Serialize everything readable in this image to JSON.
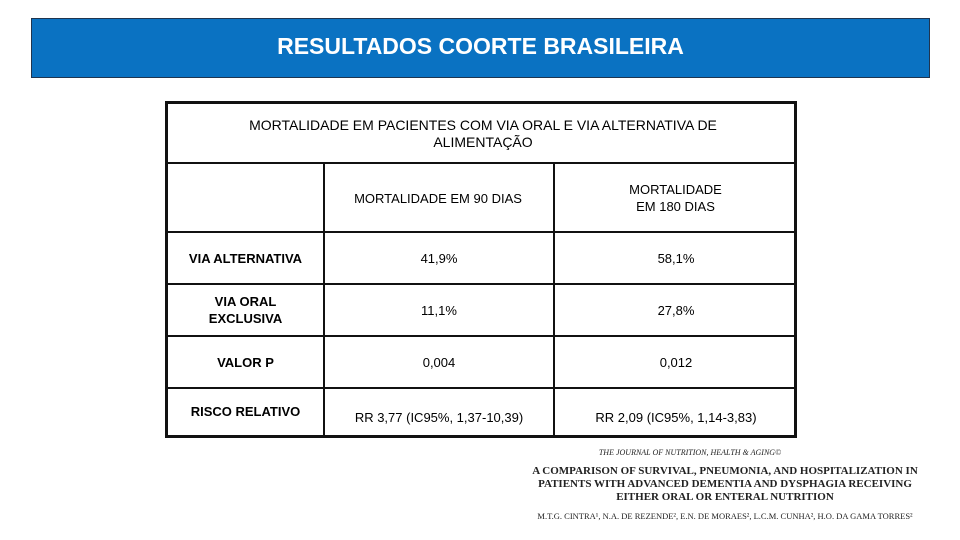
{
  "header": {
    "title": "RESULTADOS COORTE BRASILEIRA"
  },
  "table": {
    "caption": "MORTALIDADE EM PACIENTES COM VIA ORAL E VIA ALTERNATIVA DE ALIMENTAÇÃO",
    "columns": [
      "",
      "MORTALIDADE EM 90 DIAS",
      "MORTALIDADE EM 180 DIAS"
    ],
    "rows": [
      {
        "label": "VIA ALTERNATIVA",
        "d90": "41,9%",
        "d180": "58,1%"
      },
      {
        "label": "VIA ORAL EXCLUSIVA",
        "d90": "11,1%",
        "d180": "27,8%"
      },
      {
        "label": "VALOR P",
        "d90": "0,004",
        "d180": "0,012"
      },
      {
        "label": "RISCO RELATIVO",
        "d90": "RR 3,77 (IC95%, 1,37-10,39)",
        "d180": "RR 2,09 (IC95%, 1,14-3,83)"
      }
    ]
  },
  "reference": {
    "journal": "THE JOURNAL OF NUTRITION, HEALTH & AGING©",
    "title": "A COMPARISON OF SURVIVAL, PNEUMONIA, AND HOSPITALIZATION IN PATIENTS WITH ADVANCED DEMENTIA AND DYSPHAGIA RECEIVING EITHER ORAL OR ENTERAL NUTRITION",
    "authors": "M.T.G. CINTRA¹, N.A. DE REZENDE², E.N. DE MORAES², L.C.M. CUNHA², H.O. DA GAMA TORRES²"
  }
}
